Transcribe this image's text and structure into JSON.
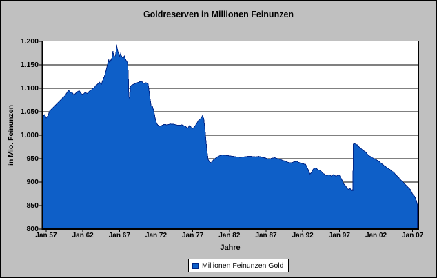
{
  "chart_data": {
    "type": "area",
    "title": "Goldreserven in Millionen Feinunzen",
    "xlabel": "Jahre",
    "ylabel": "in Mio. Feinunzen",
    "legend_label": "Millionen Feinunzen Gold",
    "legend_position": "bottom-center",
    "grid": "horizontal",
    "ylim": [
      800,
      1200
    ],
    "y_ticks": [
      800,
      850,
      900,
      950,
      1000,
      1050,
      1100,
      1150,
      1200
    ],
    "y_tick_labels": [
      "800",
      "850",
      "900",
      "950",
      "1.000",
      "1.050",
      "1.100",
      "1.150",
      "1.200"
    ],
    "x_tick_years": [
      1957,
      1962,
      1967,
      1972,
      1977,
      1982,
      1987,
      1992,
      1997,
      2002,
      2007
    ],
    "x_tick_labels": [
      "Jan 57",
      "Jan 62",
      "Jan 67",
      "Jan 72",
      "Jan 77",
      "Jan 82",
      "Jan 87",
      "Jan 92",
      "Jan 97",
      "Jan 02",
      "Jan 07"
    ],
    "colors": {
      "background": "#c0c0c0",
      "plot_background": "#ffffff",
      "gridline": "#000000",
      "fill": "#0e5fc8",
      "stroke": "#002687"
    },
    "series": [
      {
        "name": "Millionen Feinunzen Gold",
        "units": "millions of fine ounces",
        "points": [
          [
            1956.55,
            1040
          ],
          [
            1956.8,
            1044
          ],
          [
            1957.0,
            1037
          ],
          [
            1957.25,
            1042
          ],
          [
            1957.5,
            1052
          ],
          [
            1957.75,
            1056
          ],
          [
            1958.0,
            1060
          ],
          [
            1958.4,
            1066
          ],
          [
            1958.8,
            1072
          ],
          [
            1959.2,
            1079
          ],
          [
            1959.6,
            1085
          ],
          [
            1959.9,
            1092
          ],
          [
            1960.1,
            1096
          ],
          [
            1960.25,
            1090
          ],
          [
            1960.5,
            1092
          ],
          [
            1960.75,
            1086
          ],
          [
            1961.0,
            1089
          ],
          [
            1961.3,
            1093
          ],
          [
            1961.5,
            1095
          ],
          [
            1961.75,
            1089
          ],
          [
            1962.0,
            1087
          ],
          [
            1962.3,
            1091
          ],
          [
            1962.6,
            1089
          ],
          [
            1962.9,
            1094
          ],
          [
            1963.2,
            1097
          ],
          [
            1963.5,
            1101
          ],
          [
            1963.8,
            1106
          ],
          [
            1964.1,
            1110
          ],
          [
            1964.3,
            1113
          ],
          [
            1964.5,
            1108
          ],
          [
            1964.7,
            1116
          ],
          [
            1964.9,
            1124
          ],
          [
            1965.1,
            1133
          ],
          [
            1965.25,
            1143
          ],
          [
            1965.4,
            1152
          ],
          [
            1965.5,
            1160
          ],
          [
            1965.6,
            1155
          ],
          [
            1965.7,
            1163
          ],
          [
            1965.8,
            1158
          ],
          [
            1966.0,
            1166
          ],
          [
            1966.1,
            1179
          ],
          [
            1966.2,
            1170
          ],
          [
            1966.35,
            1167
          ],
          [
            1966.5,
            1172
          ],
          [
            1966.6,
            1193
          ],
          [
            1966.75,
            1180
          ],
          [
            1966.9,
            1172
          ],
          [
            1967.0,
            1168
          ],
          [
            1967.15,
            1174
          ],
          [
            1967.3,
            1168
          ],
          [
            1967.5,
            1164
          ],
          [
            1967.65,
            1169
          ],
          [
            1967.8,
            1163
          ],
          [
            1967.95,
            1158
          ],
          [
            1968.1,
            1155
          ],
          [
            1968.2,
            1131
          ],
          [
            1968.25,
            1095
          ],
          [
            1968.3,
            1082
          ],
          [
            1968.4,
            1078
          ],
          [
            1968.5,
            1104
          ],
          [
            1968.7,
            1107
          ],
          [
            1969.0,
            1109
          ],
          [
            1969.3,
            1111
          ],
          [
            1969.6,
            1113
          ],
          [
            1970.0,
            1115
          ],
          [
            1970.2,
            1112
          ],
          [
            1970.4,
            1110
          ],
          [
            1970.6,
            1112
          ],
          [
            1970.9,
            1109
          ],
          [
            1971.1,
            1088
          ],
          [
            1971.3,
            1063
          ],
          [
            1971.5,
            1061
          ],
          [
            1971.7,
            1050
          ],
          [
            1971.85,
            1038
          ],
          [
            1972.0,
            1028
          ],
          [
            1972.2,
            1022
          ],
          [
            1972.5,
            1019
          ],
          [
            1972.8,
            1021
          ],
          [
            1973.1,
            1023
          ],
          [
            1973.5,
            1022
          ],
          [
            1974.0,
            1024
          ],
          [
            1974.5,
            1023
          ],
          [
            1975.0,
            1021
          ],
          [
            1975.5,
            1022
          ],
          [
            1976.0,
            1019
          ],
          [
            1976.3,
            1015
          ],
          [
            1976.6,
            1021
          ],
          [
            1976.9,
            1014
          ],
          [
            1977.2,
            1017
          ],
          [
            1977.5,
            1024
          ],
          [
            1977.8,
            1032
          ],
          [
            1978.1,
            1036
          ],
          [
            1978.35,
            1042
          ],
          [
            1978.5,
            1035
          ],
          [
            1978.7,
            1005
          ],
          [
            1978.9,
            970
          ],
          [
            1979.1,
            948
          ],
          [
            1979.3,
            943
          ],
          [
            1979.5,
            941
          ],
          [
            1979.8,
            947
          ],
          [
            1980.2,
            952
          ],
          [
            1980.6,
            956
          ],
          [
            1981.0,
            958
          ],
          [
            1981.5,
            957
          ],
          [
            1982.0,
            956
          ],
          [
            1982.5,
            955
          ],
          [
            1983.0,
            954
          ],
          [
            1983.5,
            953
          ],
          [
            1984.0,
            954
          ],
          [
            1984.5,
            955
          ],
          [
            1985.0,
            955
          ],
          [
            1985.5,
            954
          ],
          [
            1986.0,
            955
          ],
          [
            1986.5,
            953
          ],
          [
            1987.0,
            951
          ],
          [
            1987.4,
            949
          ],
          [
            1987.8,
            951
          ],
          [
            1988.2,
            952
          ],
          [
            1988.6,
            950
          ],
          [
            1989.0,
            948
          ],
          [
            1989.5,
            945
          ],
          [
            1990.0,
            942
          ],
          [
            1990.4,
            941
          ],
          [
            1990.8,
            943
          ],
          [
            1991.2,
            944
          ],
          [
            1991.6,
            941
          ],
          [
            1992.0,
            939
          ],
          [
            1992.4,
            938
          ],
          [
            1992.7,
            928
          ],
          [
            1993.0,
            917
          ],
          [
            1993.2,
            921
          ],
          [
            1993.5,
            929
          ],
          [
            1993.8,
            930
          ],
          [
            1994.1,
            926
          ],
          [
            1994.4,
            925
          ],
          [
            1994.7,
            920
          ],
          [
            1995.0,
            916
          ],
          [
            1995.3,
            914
          ],
          [
            1995.6,
            916
          ],
          [
            1995.9,
            913
          ],
          [
            1996.2,
            916
          ],
          [
            1996.5,
            913
          ],
          [
            1996.8,
            914
          ],
          [
            1997.0,
            915
          ],
          [
            1997.3,
            906
          ],
          [
            1997.6,
            896
          ],
          [
            1997.9,
            891
          ],
          [
            1998.1,
            886
          ],
          [
            1998.3,
            884
          ],
          [
            1998.45,
            887
          ],
          [
            1998.6,
            882
          ],
          [
            1998.75,
            884
          ],
          [
            1998.85,
            881
          ],
          [
            1998.9,
            981
          ],
          [
            1999.1,
            982
          ],
          [
            1999.3,
            980
          ],
          [
            1999.5,
            979
          ],
          [
            1999.7,
            975
          ],
          [
            2000.0,
            971
          ],
          [
            2000.3,
            967
          ],
          [
            2000.6,
            964
          ],
          [
            2000.9,
            958
          ],
          [
            2001.2,
            955
          ],
          [
            2001.5,
            952
          ],
          [
            2001.9,
            949
          ],
          [
            2002.2,
            946
          ],
          [
            2002.5,
            943
          ],
          [
            2002.8,
            939
          ],
          [
            2003.1,
            935
          ],
          [
            2003.4,
            932
          ],
          [
            2003.8,
            928
          ],
          [
            2004.1,
            924
          ],
          [
            2004.4,
            921
          ],
          [
            2004.7,
            916
          ],
          [
            2005.0,
            911
          ],
          [
            2005.3,
            906
          ],
          [
            2005.6,
            901
          ],
          [
            2005.9,
            896
          ],
          [
            2006.2,
            892
          ],
          [
            2006.5,
            887
          ],
          [
            2006.7,
            884
          ],
          [
            2006.9,
            877
          ],
          [
            2007.1,
            872
          ],
          [
            2007.25,
            870
          ],
          [
            2007.4,
            865
          ],
          [
            2007.55,
            858
          ],
          [
            2007.65,
            852
          ]
        ]
      }
    ]
  }
}
